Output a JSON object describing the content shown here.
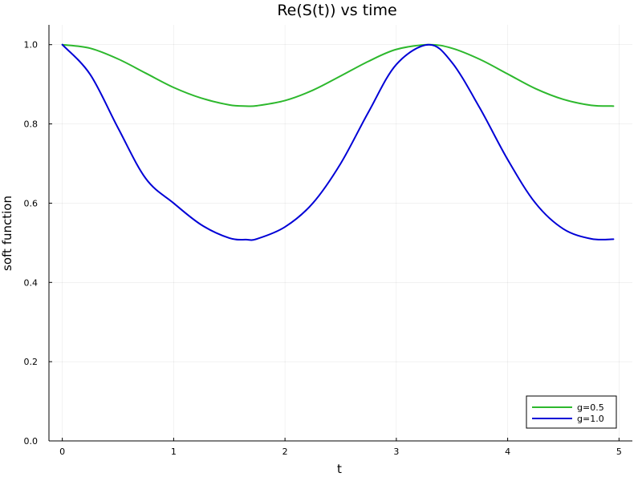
{
  "chart_data": {
    "type": "line",
    "title": "Re(S(t)) vs time",
    "xlabel": "t",
    "ylabel": "soft function",
    "xlim": [
      -0.12,
      5.12
    ],
    "ylim": [
      0.0,
      1.05
    ],
    "xticks": [
      0,
      1,
      2,
      3,
      4,
      5
    ],
    "yticks": [
      0.0,
      0.2,
      0.4,
      0.6,
      0.8,
      1.0
    ],
    "xtick_labels": [
      "0",
      "1",
      "2",
      "3",
      "4",
      "5"
    ],
    "ytick_labels": [
      "0.0",
      "0.2",
      "0.4",
      "0.6",
      "0.8",
      "1.0"
    ],
    "grid": true,
    "legend_position": "bottom-right",
    "x": [
      0.0,
      0.25,
      0.5,
      0.75,
      1.0,
      1.25,
      1.5,
      1.65,
      1.75,
      2.0,
      2.25,
      2.5,
      2.75,
      3.0,
      3.29,
      3.5,
      3.75,
      4.0,
      4.25,
      4.5,
      4.75,
      4.95
    ],
    "series": [
      {
        "name": "g=0.5",
        "color": "#2db82d",
        "values": [
          1.0,
          0.991,
          0.964,
          0.928,
          0.892,
          0.865,
          0.848,
          0.845,
          0.846,
          0.859,
          0.885,
          0.921,
          0.958,
          0.988,
          1.0,
          0.991,
          0.963,
          0.926,
          0.889,
          0.862,
          0.847,
          0.845
        ]
      },
      {
        "name": "g=1.0",
        "color": "#0000d6",
        "values": [
          1.0,
          0.925,
          0.79,
          0.662,
          0.6,
          0.545,
          0.512,
          0.508,
          0.51,
          0.54,
          0.6,
          0.7,
          0.83,
          0.95,
          1.0,
          0.955,
          0.84,
          0.71,
          0.6,
          0.535,
          0.51,
          0.509
        ]
      }
    ]
  }
}
